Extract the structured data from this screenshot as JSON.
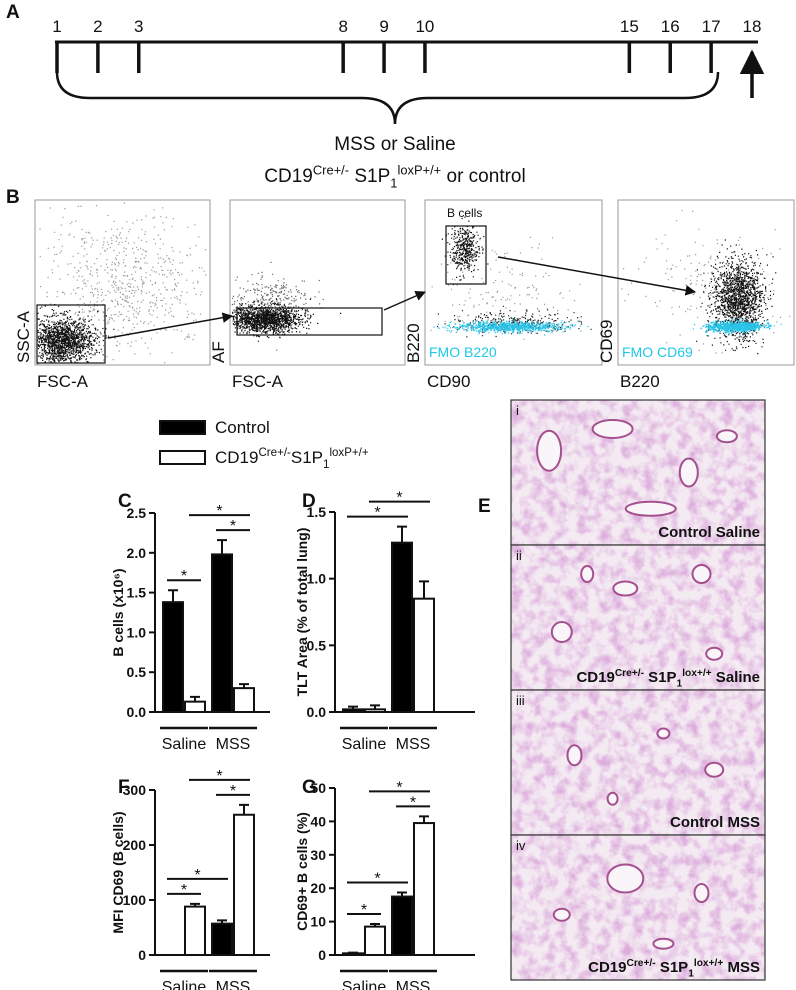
{
  "timeline": {
    "label": "A",
    "injection_days": [
      1,
      2,
      3,
      8,
      9,
      10,
      15,
      16,
      17
    ],
    "harvest_day": 18,
    "xlim": [
      1,
      18
    ],
    "caption": "MSS or Saline",
    "groups": [
      {
        "t": "CD19"
      },
      {
        "t": "Cre+/-",
        "s": "sup"
      },
      {
        "t": " S1P"
      },
      {
        "t": "1",
        "s": "sub"
      },
      {
        "t": "loxP+/+",
        "s": "sup"
      },
      {
        "t": " or control"
      }
    ]
  },
  "flow": {
    "label": "B",
    "plots": [
      {
        "xlabel": "FSC-A",
        "ylabel": "SSC-A"
      },
      {
        "xlabel": "FSC-A",
        "ylabel": "AF"
      },
      {
        "xlabel": "CD90",
        "ylabel": "B220",
        "gate_label": "B cells",
        "fmo_label": "FMO B220"
      },
      {
        "xlabel": "B220",
        "ylabel": "CD69",
        "fmo_label": "FMO CD69"
      }
    ]
  },
  "legend": {
    "entries": [
      {
        "name": [
          {
            "t": "Control"
          }
        ]
      },
      {
        "name": [
          {
            "t": "CD19"
          },
          {
            "t": "Cre+/-",
            "s": "sup"
          },
          {
            "t": "S1P"
          },
          {
            "t": "1",
            "s": "sub"
          },
          {
            "t": "loxP+/+",
            "s": "sup"
          }
        ]
      }
    ]
  },
  "chart_data": [
    {
      "type": "bar",
      "label": "C",
      "ylabel": "B cells (x10⁶)",
      "categories": [
        "Saline",
        "MSS"
      ],
      "series": [
        {
          "color": "#000000",
          "values": [
            1.38,
            1.98
          ],
          "errors": [
            0.15,
            0.18
          ]
        },
        {
          "color": "#ffffff",
          "values": [
            0.13,
            0.3
          ],
          "errors": [
            0.06,
            0.05
          ]
        }
      ],
      "ylim": [
        0,
        2.5
      ],
      "yticks": [
        {
          "value": 0,
          "label": "0.0"
        },
        0.5,
        {
          "value": 1,
          "label": "1.0"
        },
        1.5,
        {
          "value": 2,
          "label": "2.0"
        },
        2.5
      ],
      "significance": [
        {
          "bars": [
            0,
            1
          ],
          "label": "*"
        },
        {
          "bars": [
            2,
            3
          ],
          "label": "*"
        },
        {
          "bars": [
            1,
            3
          ],
          "label": "*"
        }
      ]
    },
    {
      "type": "bar",
      "label": "D",
      "ylabel": "TLT Area (% of total lung)",
      "categories": [
        "Saline",
        "MSS"
      ],
      "series": [
        {
          "color": "#000000",
          "values": [
            0.02,
            1.27
          ],
          "errors": [
            0.02,
            0.12
          ]
        },
        {
          "color": "#ffffff",
          "values": [
            0.02,
            0.85
          ],
          "errors": [
            0.03,
            0.13
          ]
        }
      ],
      "ylim": [
        0,
        1.5
      ],
      "yticks": [
        {
          "value": 0,
          "label": "0.0"
        },
        0.5,
        {
          "value": 1,
          "label": "1.0"
        },
        1.5
      ],
      "significance": [
        {
          "bars": [
            0,
            2
          ],
          "label": "*"
        },
        {
          "bars": [
            1,
            3
          ],
          "label": "*"
        }
      ]
    },
    {
      "type": "bar",
      "label": "F",
      "ylabel": "MFI CD69 (B cells)",
      "categories": [
        "Saline",
        "MSS"
      ],
      "series": [
        {
          "color": "#000000",
          "values": [
            0,
            57
          ],
          "errors": [
            0,
            6
          ]
        },
        {
          "color": "#ffffff",
          "values": [
            88,
            255
          ],
          "errors": [
            5,
            18
          ]
        }
      ],
      "ylim": [
        0,
        300
      ],
      "yticks": [
        0,
        100,
        200,
        300
      ],
      "significance": [
        {
          "bars": [
            0,
            1
          ],
          "label": "*"
        },
        {
          "bars": [
            0,
            2
          ],
          "label": "*"
        },
        {
          "bars": [
            2,
            3
          ],
          "label": "*"
        },
        {
          "bars": [
            1,
            3
          ],
          "label": "*"
        }
      ]
    },
    {
      "type": "bar",
      "label": "G",
      "ylabel": "CD69+ B cells (%)",
      "categories": [
        "Saline",
        "MSS"
      ],
      "series": [
        {
          "color": "#000000",
          "values": [
            0.5,
            17.5
          ],
          "errors": [
            0.2,
            1.2
          ]
        },
        {
          "color": "#ffffff",
          "values": [
            8.5,
            39.5
          ],
          "errors": [
            0.8,
            2
          ]
        }
      ],
      "ylim": [
        0,
        50
      ],
      "yticks": [
        0,
        10,
        20,
        30,
        40,
        50
      ],
      "significance": [
        {
          "bars": [
            0,
            1
          ],
          "label": "*"
        },
        {
          "bars": [
            0,
            2
          ],
          "label": "*"
        },
        {
          "bars": [
            2,
            3
          ],
          "label": "*"
        },
        {
          "bars": [
            1,
            3
          ],
          "label": "*"
        }
      ]
    }
  ],
  "histology": {
    "label": "E",
    "panels": [
      {
        "numeral": "i",
        "caption": [
          {
            "t": "Control Saline"
          }
        ]
      },
      {
        "numeral": "ii",
        "caption": [
          {
            "t": "CD19"
          },
          {
            "t": "Cre+/-",
            "s": "sup"
          },
          {
            "t": " S1P"
          },
          {
            "t": "1",
            "s": "sub"
          },
          {
            "t": "lox+/+",
            "s": "sup"
          },
          {
            "t": " Saline"
          }
        ]
      },
      {
        "numeral": "iii",
        "caption": [
          {
            "t": "Control MSS"
          }
        ]
      },
      {
        "numeral": "iv",
        "caption": [
          {
            "t": "CD19"
          },
          {
            "t": "Cre+/-",
            "s": "sup"
          },
          {
            "t": " S1P"
          },
          {
            "t": "1",
            "s": "sub"
          },
          {
            "t": "lox+/+",
            "s": "sup"
          },
          {
            "t": " MSS"
          }
        ]
      }
    ]
  }
}
